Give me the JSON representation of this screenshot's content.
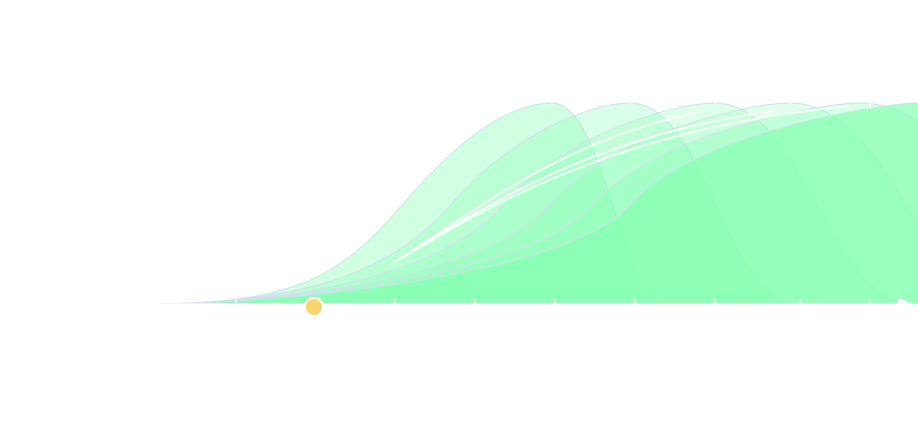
{
  "colors": {
    "background": "#ffffff",
    "curve_fill": "#86ffb2",
    "curve_stroke": "#d6dcef",
    "highlight_stroke": "#ffffff",
    "marker_fill": "#fbd36c",
    "marker_stroke": "#ffffff",
    "axis_tick": "#ffffff"
  },
  "icons": {
    "marker": "playhead-dot-icon",
    "axis_end": "arrowhead-icon"
  },
  "diagram": {
    "type": "overlapping-s-curves",
    "curve_count": 6,
    "axis_tick_count": 9
  }
}
